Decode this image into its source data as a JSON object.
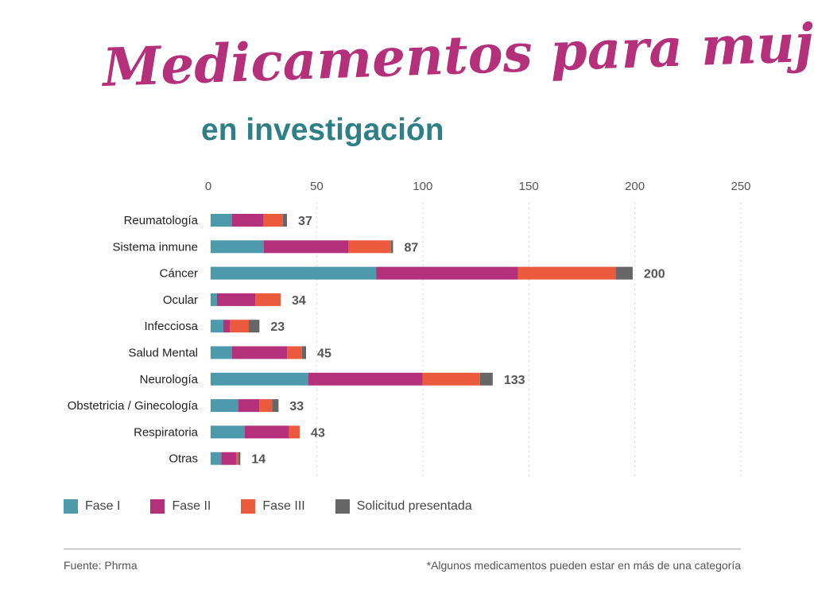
{
  "title": "Medicamentos para mujeres",
  "subtitle": "en investigación",
  "colors": {
    "title": "#b5307a",
    "subtitle": "#2f7f87",
    "fase1": "#4d9aac",
    "fase2": "#b5307a",
    "fase3": "#ec5a3e",
    "solicitud": "#666666"
  },
  "legend": [
    {
      "label": "Fase I",
      "color": "#4d9aac"
    },
    {
      "label": "Fase II",
      "color": "#b5307a"
    },
    {
      "label": "Fase III",
      "color": "#ec5a3e"
    },
    {
      "label": "Solicitud presentada",
      "color": "#666666"
    }
  ],
  "source": "Fuente: Phrma",
  "note": "*Algunos medicamentos pueden estar en más de una categoría",
  "chart_data": {
    "type": "bar",
    "orientation": "horizontal",
    "stacked": true,
    "categories": [
      "Reumatología",
      "Sistema inmune",
      "Cáncer",
      "Ocular",
      "Infecciosa",
      "Salud Mental",
      "Neurología",
      "Obstetricia / Ginecología",
      "Respiratoria",
      "Otras"
    ],
    "series": [
      {
        "name": "Fase I",
        "values": [
          10,
          25,
          78,
          3,
          6,
          10,
          46,
          13,
          16,
          5
        ]
      },
      {
        "name": "Fase II",
        "values": [
          15,
          40,
          67,
          18,
          3,
          26,
          54,
          10,
          21,
          7
        ]
      },
      {
        "name": "Fase III",
        "values": [
          9,
          20,
          46,
          12,
          9,
          7,
          27,
          6,
          5,
          1
        ]
      },
      {
        "name": "Solicitud presentada",
        "values": [
          2,
          1,
          8,
          0,
          5,
          2,
          6,
          3,
          0,
          1
        ]
      }
    ],
    "totals": [
      37,
      87,
      200,
      34,
      23,
      45,
      133,
      33,
      43,
      14
    ],
    "xlim": [
      0,
      250
    ],
    "xticks": [
      0,
      50,
      100,
      150,
      200,
      250
    ],
    "xaxis_position": "top",
    "grid": "vertical-dotted",
    "legend_position": "bottom-left"
  }
}
